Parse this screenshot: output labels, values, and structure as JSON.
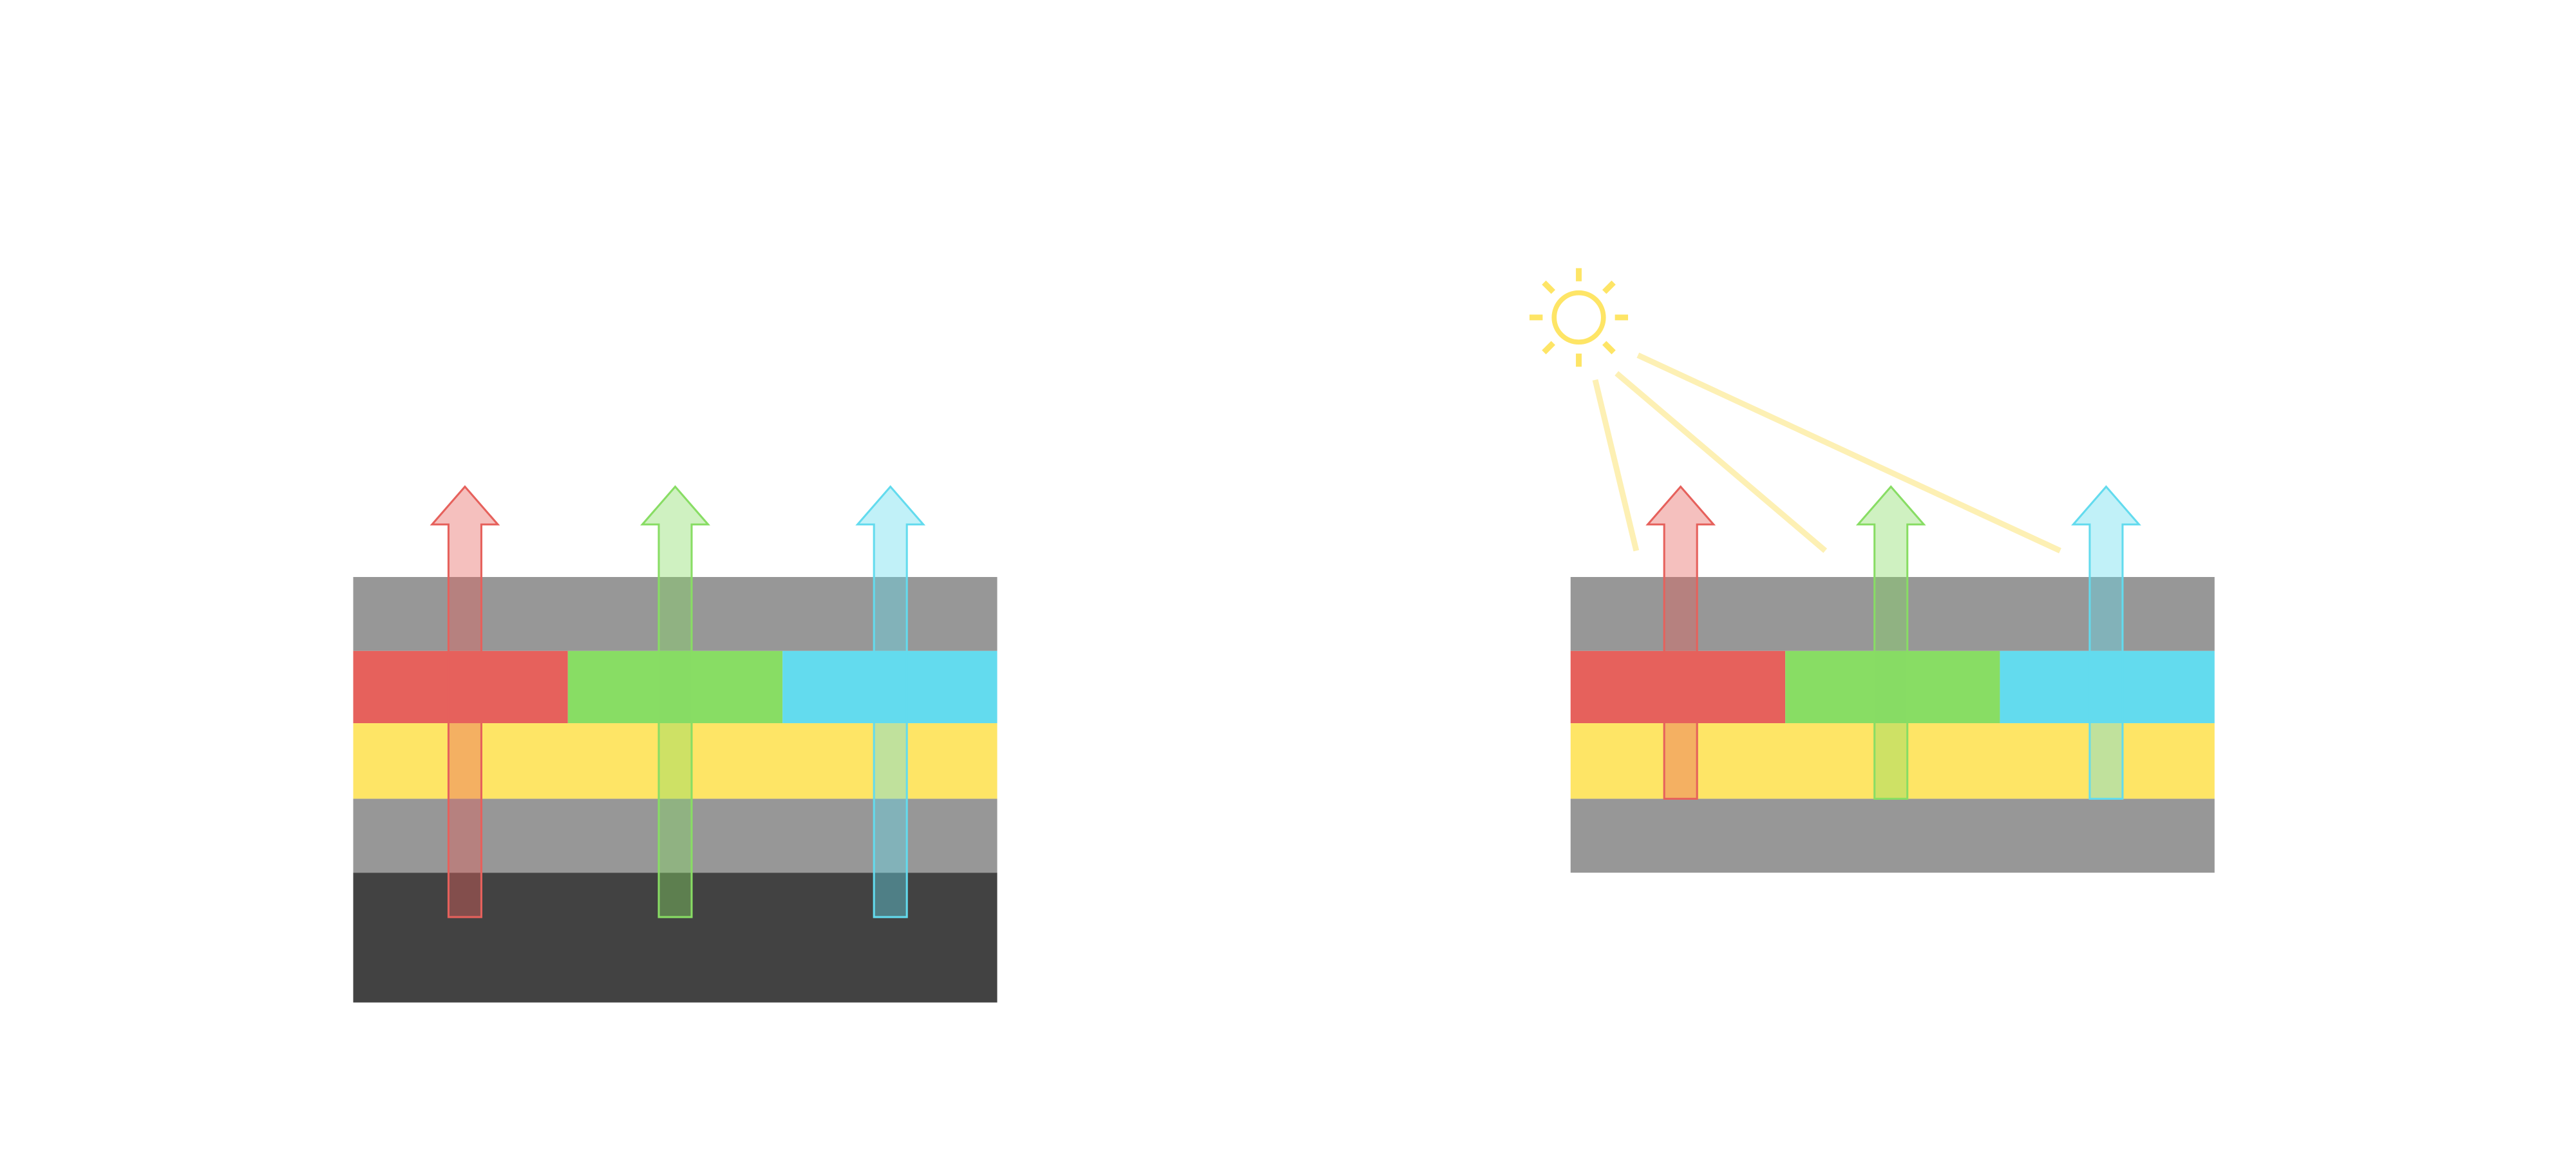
{
  "colors": {
    "gray_layer": "#979797",
    "dark_layer": "#424242",
    "red": "#E6615C",
    "green": "#88DD64",
    "cyan": "#63DBEE",
    "yellow": "#FEE566",
    "light_ray": "#FDF0B4"
  },
  "panels": [
    {
      "name": "left-stack",
      "layers": [
        "gray",
        "red-green-cyan",
        "yellow",
        "gray",
        "dark"
      ],
      "arrows": [
        "red",
        "green",
        "cyan"
      ]
    },
    {
      "name": "right-stack",
      "layers": [
        "gray",
        "red-green-cyan",
        "yellow",
        "gray"
      ],
      "arrows": [
        "red",
        "green",
        "cyan"
      ],
      "icon": "sun-icon"
    }
  ]
}
